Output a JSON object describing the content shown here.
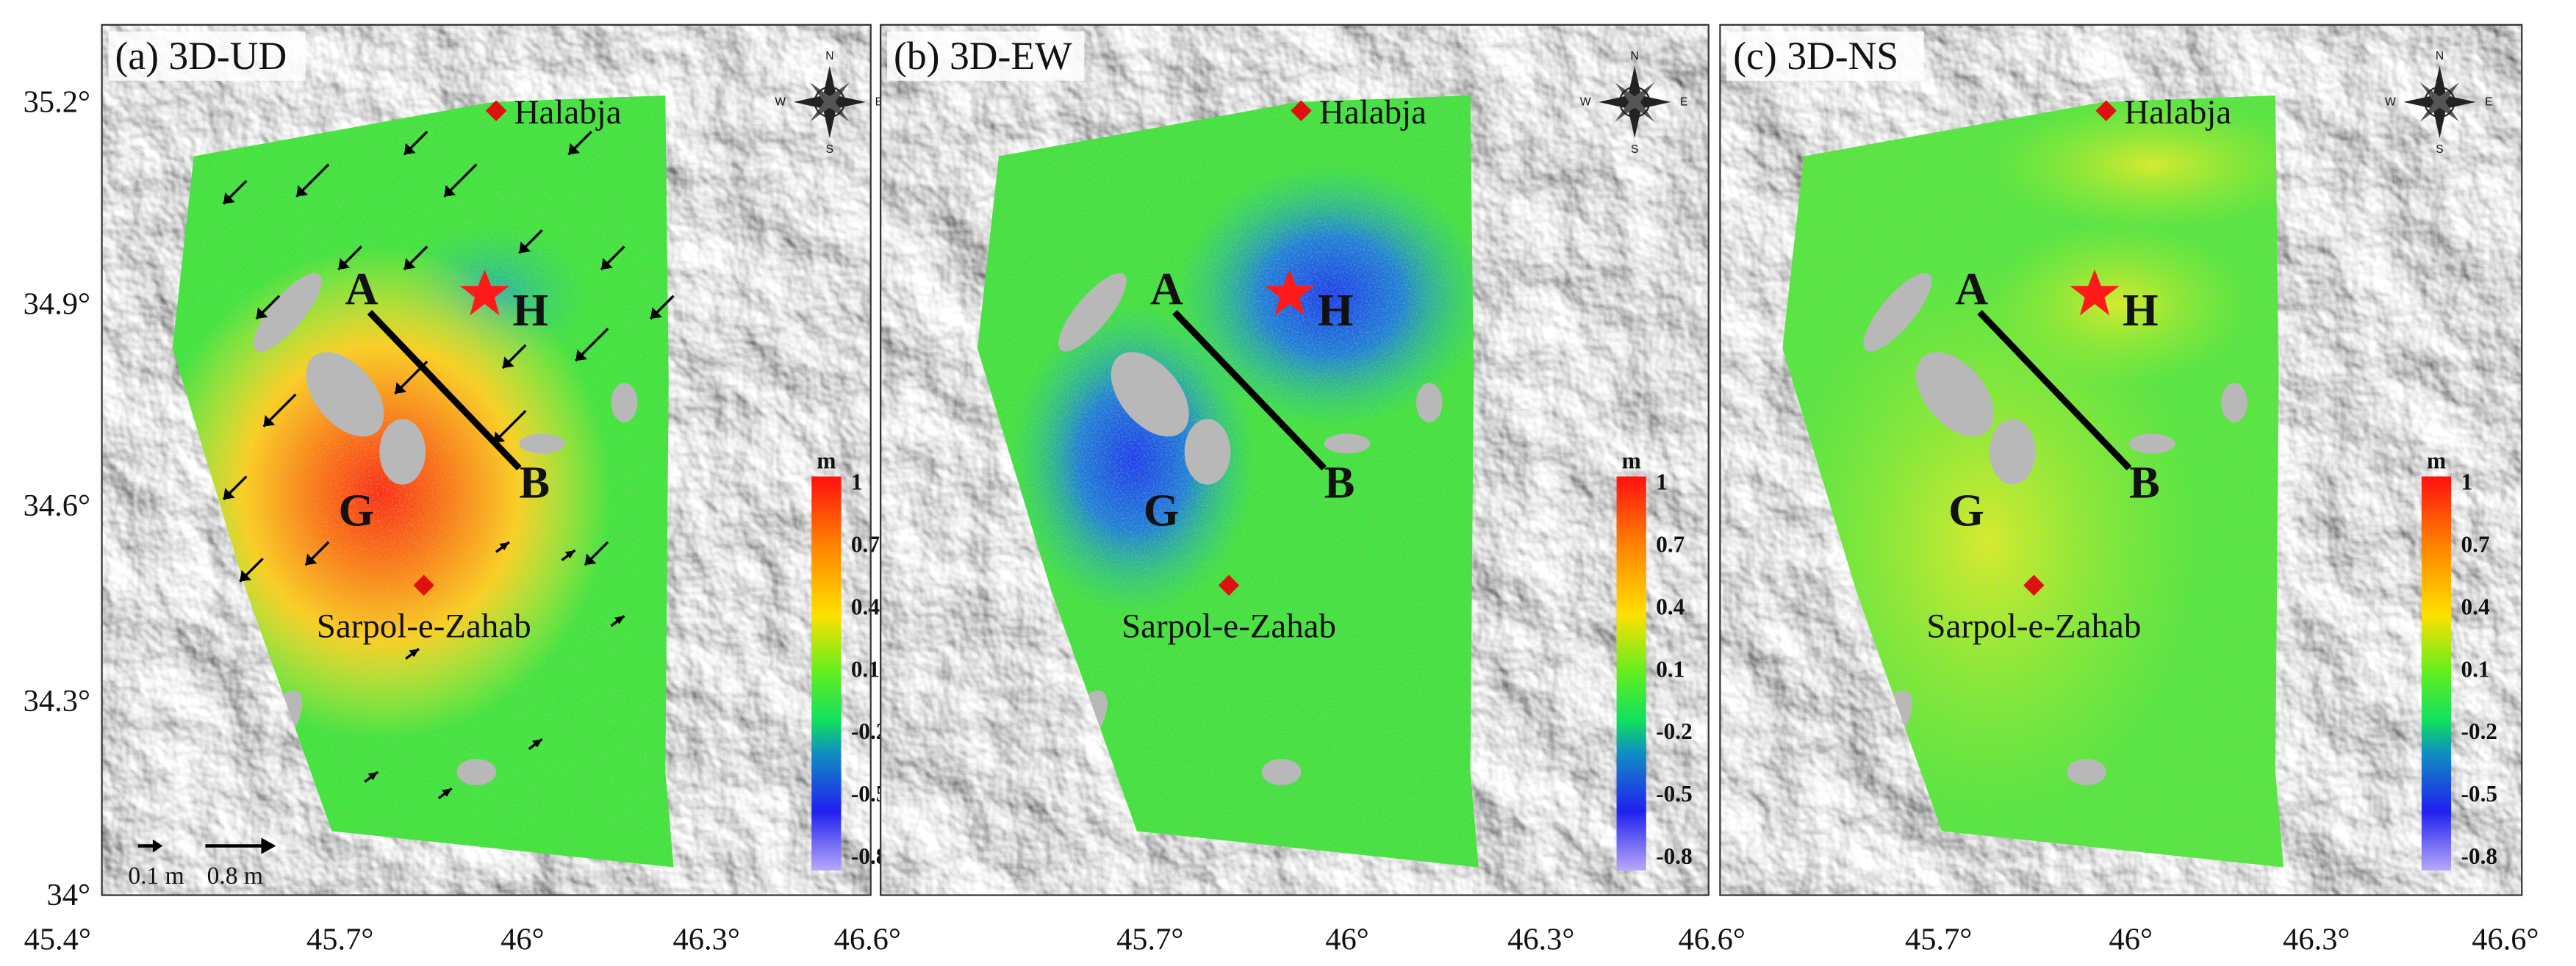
{
  "panels": [
    {
      "label": "(a) 3D-UD",
      "x_ticks": [
        "45.4°",
        "45.7°",
        "46°",
        "46.3°",
        "46.6°"
      ]
    },
    {
      "label": "(b) 3D-EW",
      "x_ticks": [
        "45.7°",
        "46°",
        "46.3°",
        "46.6°"
      ]
    },
    {
      "label": "(c) 3D-NS",
      "x_ticks": [
        "45.7°",
        "46°",
        "46.3°",
        "46.6°"
      ]
    }
  ],
  "y_ticks": [
    "35.2°",
    "34.9°",
    "34.6°",
    "34.3°",
    "34°"
  ],
  "places": [
    "Halabja",
    "Sarpol-e-Zahab"
  ],
  "markers": [
    "A",
    "B",
    "G",
    "H"
  ],
  "compass": [
    "N",
    "S",
    "W",
    "E"
  ],
  "colorbar": {
    "unit": "m",
    "ticks": [
      "1",
      "0.7",
      "0.4",
      "0.1",
      "-0.2",
      "-0.5",
      "-0.8"
    ]
  },
  "scale_legend": [
    "0.1 m",
    "0.8 m"
  ]
}
